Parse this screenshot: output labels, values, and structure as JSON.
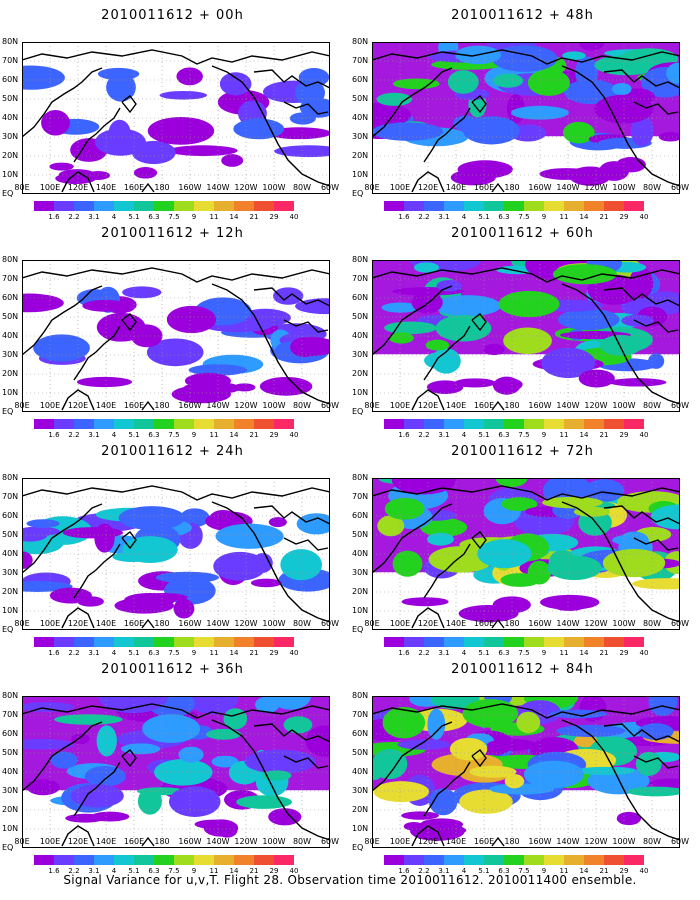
{
  "panels": [
    {
      "title": "2010011612 + 00h",
      "intensity": 0.1
    },
    {
      "title": "2010011612 + 48h",
      "intensity": 0.55
    },
    {
      "title": "2010011612 + 12h",
      "intensity": 0.18
    },
    {
      "title": "2010011612 + 60h",
      "intensity": 0.62
    },
    {
      "title": "2010011612 + 24h",
      "intensity": 0.3
    },
    {
      "title": "2010011612 + 72h",
      "intensity": 0.72
    },
    {
      "title": "2010011612 + 36h",
      "intensity": 0.42
    },
    {
      "title": "2010011612 + 84h",
      "intensity": 0.8
    }
  ],
  "lat_labels": [
    "80N",
    "70N",
    "60N",
    "50N",
    "40N",
    "30N",
    "20N",
    "10N",
    "EQ"
  ],
  "lon_labels": [
    "80E",
    "100E",
    "120E",
    "140E",
    "160E",
    "180",
    "160W",
    "140W",
    "120W",
    "100W",
    "80W",
    "60W"
  ],
  "colorbar": {
    "labels": [
      "1.6",
      "2.2",
      "3.1",
      "4",
      "5.1",
      "6.3",
      "7.5",
      "9",
      "11",
      "14",
      "21",
      "29",
      "40"
    ],
    "colors": [
      "#ffffff",
      "#9b00dc",
      "#6a3cff",
      "#3c64ff",
      "#2d9bff",
      "#12c6d2",
      "#12c69b",
      "#22d21e",
      "#a0dc1e",
      "#e6dc32",
      "#e6af2d",
      "#f0822a",
      "#f05032",
      "#fa2864"
    ]
  },
  "caption": "Signal Variance for u,v,T. Flight 28. Observation time 2010011612. 2010011400 ensemble."
}
